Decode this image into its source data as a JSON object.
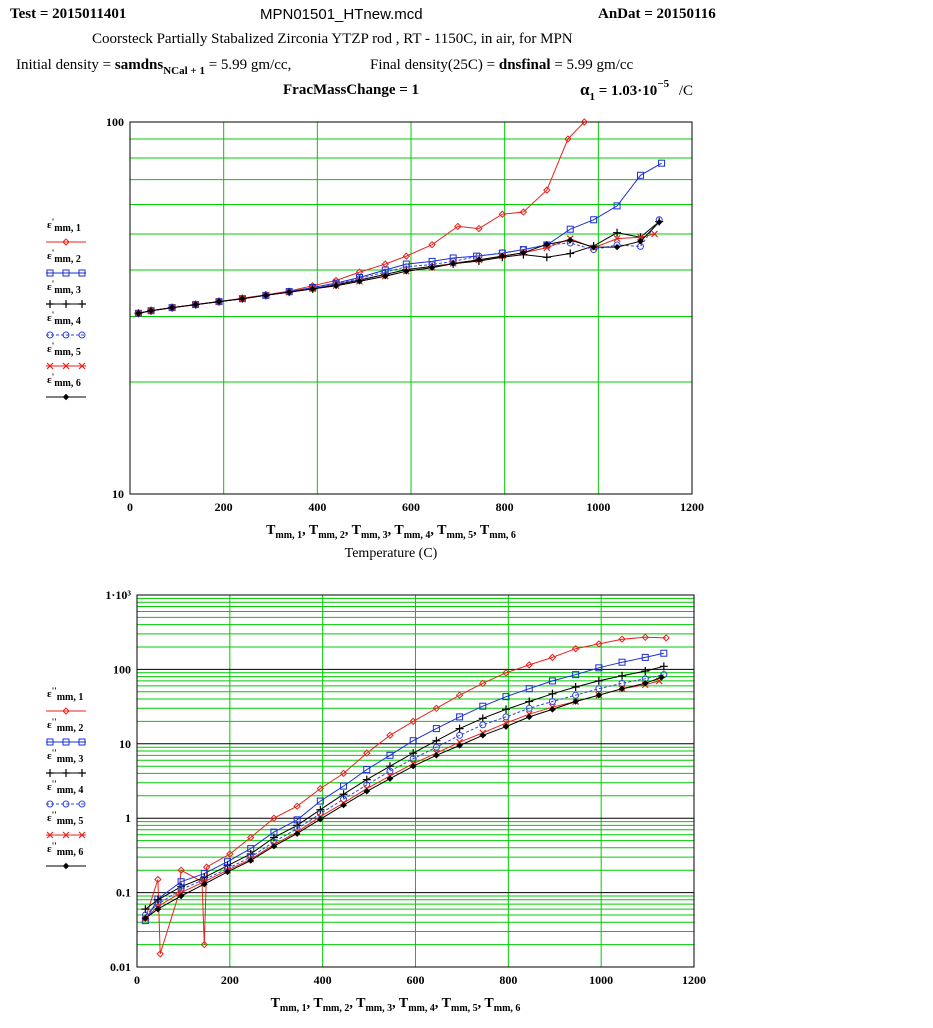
{
  "header": {
    "test": "Test = 2015011401",
    "file": "MPN01501_HTnew.mcd",
    "andat": "AnDat = 20150116",
    "description": "Coorsteck Partially Stabalized Zirconia YTZP rod , RT - 1150C, in air, for MPN",
    "init_density_label": "Initial density =",
    "init_density_var": "samdns",
    "init_density_sub": "NCal + 1",
    "init_density_value": "= 5.99 gm/cc,",
    "final_density_label": "Final density(25C) =",
    "final_density_var": "dnsfinal",
    "final_density_value": "= 5.99 gm/cc",
    "frac_mass": "FracMassChange = 1",
    "alpha_symbol": "α",
    "alpha_sub": "1",
    "alpha_value": "= 1.03·10",
    "alpha_exp": "−5",
    "alpha_unit": "/C"
  },
  "colors": {
    "grid": "#00cc00",
    "series": [
      "#e8231b",
      "#1a2fd4",
      "#000000",
      "#3344dd",
      "#e8231b",
      "#000000"
    ]
  },
  "chart_data": [
    {
      "type": "line",
      "scale": "log-y",
      "xlabel": "T_mm,1, T_mm,2, T_mm,3, T_mm,4, T_mm,5, T_mm,6",
      "xlabel_line2": "Temperature (C)",
      "xlim": [
        0,
        1200
      ],
      "ylim": [
        10,
        100
      ],
      "x_ticks": [
        "0",
        "200",
        "400",
        "600",
        "800",
        "1000",
        "1200"
      ],
      "y_ticks": [
        "100",
        "10"
      ],
      "grid": true,
      "legend_position": "left",
      "series": [
        {
          "name": "ε'mm,1",
          "marker": "diamond",
          "x": [
            18,
            45,
            90,
            140,
            190,
            240,
            290,
            340,
            390,
            440,
            490,
            545,
            590,
            645,
            700,
            745,
            795,
            840,
            890,
            935,
            970
          ],
          "y": [
            30.6,
            31.1,
            31.7,
            32.3,
            32.9,
            33.6,
            34.3,
            35.1,
            36.3,
            37.5,
            39.5,
            41.5,
            43.6,
            46.8,
            52.4,
            51.7,
            56.5,
            57.3,
            65.6,
            90,
            100
          ]
        },
        {
          "name": "ε'mm,2",
          "marker": "square",
          "x": [
            18,
            45,
            90,
            140,
            190,
            240,
            290,
            340,
            390,
            440,
            490,
            545,
            590,
            645,
            690,
            740,
            795,
            840,
            890,
            940,
            990,
            1040,
            1090,
            1135
          ],
          "y": [
            30.6,
            31.1,
            31.7,
            32.3,
            32.9,
            33.5,
            34.2,
            35.0,
            35.9,
            36.9,
            38.2,
            40.0,
            41.5,
            42.2,
            43.1,
            43.6,
            44.4,
            45.4,
            46.7,
            51.5,
            54.6,
            59.5,
            71.9,
            77.5
          ]
        },
        {
          "name": "ε'mm,3",
          "marker": "plus",
          "x": [
            18,
            45,
            90,
            140,
            190,
            240,
            290,
            340,
            390,
            440,
            490,
            545,
            590,
            645,
            690,
            745,
            795,
            840,
            890,
            940,
            990,
            1040,
            1090,
            1130
          ],
          "y": [
            30.6,
            31.1,
            31.7,
            32.3,
            32.9,
            33.5,
            34.2,
            34.9,
            35.6,
            36.5,
            37.6,
            38.9,
            40.1,
            40.9,
            41.6,
            42.3,
            43.3,
            44.0,
            43.3,
            44.3,
            46.4,
            50.4,
            49.0,
            54.0
          ]
        },
        {
          "name": "ε'mm,4",
          "marker": "circle",
          "x": [
            18,
            45,
            90,
            140,
            190,
            240,
            290,
            340,
            390,
            440,
            490,
            545,
            590,
            645,
            690,
            745,
            795,
            840,
            890,
            940,
            990,
            1040,
            1090,
            1130
          ],
          "y": [
            30.6,
            31.1,
            31.7,
            32.3,
            32.9,
            33.5,
            34.2,
            34.9,
            35.7,
            36.7,
            37.9,
            39.5,
            40.8,
            41.4,
            42.2,
            43.6,
            44.5,
            45.4,
            46.8,
            47.3,
            45.4,
            46.7,
            46.3,
            54.6
          ]
        },
        {
          "name": "ε'mm,5",
          "marker": "x",
          "x": [
            18,
            45,
            90,
            140,
            190,
            240,
            290,
            340,
            390,
            440,
            490,
            545,
            590,
            645,
            690,
            745,
            795,
            840,
            890,
            940,
            990,
            1040,
            1090,
            1120
          ],
          "y": [
            30.6,
            31.1,
            31.7,
            32.3,
            32.9,
            33.5,
            34.2,
            34.9,
            35.6,
            36.3,
            37.3,
            38.5,
            39.7,
            40.6,
            41.7,
            42.6,
            43.6,
            44.5,
            45.9,
            48.6,
            45.9,
            48.6,
            49.0,
            50.0
          ]
        },
        {
          "name": "ε'mm,6",
          "marker": "dot",
          "x": [
            18,
            45,
            90,
            140,
            190,
            240,
            290,
            340,
            390,
            440,
            490,
            545,
            590,
            645,
            690,
            745,
            795,
            840,
            890,
            940,
            990,
            1040,
            1090,
            1130
          ],
          "y": [
            30.6,
            31.1,
            31.7,
            32.3,
            32.9,
            33.5,
            34.2,
            34.9,
            35.6,
            36.3,
            37.3,
            38.5,
            39.7,
            40.6,
            41.6,
            42.6,
            43.6,
            44.5,
            46.9,
            48.1,
            46.1,
            46.1,
            47.8,
            53.8
          ]
        }
      ]
    },
    {
      "type": "line",
      "scale": "log-y",
      "xlabel": "T_mm,1, T_mm,2, T_mm,3, T_mm,4, T_mm,5, T_mm,6",
      "xlim": [
        0,
        1200
      ],
      "ylim": [
        0.01,
        1000
      ],
      "x_ticks": [
        "0",
        "200",
        "400",
        "600",
        "800",
        "1000",
        "1200"
      ],
      "y_ticks": [
        "1·10³",
        "100",
        "10",
        "1",
        "0.1",
        "0.01"
      ],
      "grid": true,
      "legend_position": "left",
      "series": [
        {
          "name": "ε''mm,1",
          "marker": "diamond",
          "x": [
            18,
            45,
            50,
            90,
            95,
            140,
            145,
            150,
            200,
            245,
            295,
            345,
            395,
            445,
            495,
            545,
            595,
            645,
            695,
            745,
            795,
            845,
            895,
            945,
            995,
            1045,
            1095,
            1140
          ],
          "y": [
            0.045,
            0.15,
            0.015,
            0.095,
            0.2,
            0.14,
            0.02,
            0.22,
            0.33,
            0.55,
            1.0,
            1.45,
            2.5,
            4.0,
            7.5,
            13,
            20,
            30,
            45,
            65,
            90,
            115,
            145,
            190,
            220,
            255,
            270,
            265
          ]
        },
        {
          "name": "ε''mm,2",
          "marker": "square",
          "x": [
            18,
            45,
            95,
            145,
            195,
            245,
            295,
            345,
            395,
            445,
            495,
            545,
            595,
            645,
            695,
            745,
            795,
            845,
            895,
            945,
            995,
            1045,
            1095,
            1135
          ],
          "y": [
            0.042,
            0.082,
            0.14,
            0.18,
            0.26,
            0.39,
            0.65,
            0.95,
            1.7,
            2.7,
            4.5,
            7,
            11,
            16,
            23,
            32,
            43,
            55,
            70,
            85,
            105,
            125,
            145,
            165
          ]
        },
        {
          "name": "ε''mm,3",
          "marker": "plus",
          "x": [
            18,
            45,
            95,
            145,
            195,
            245,
            295,
            345,
            395,
            445,
            495,
            545,
            595,
            645,
            695,
            745,
            795,
            845,
            895,
            945,
            995,
            1045,
            1095,
            1135
          ],
          "y": [
            0.06,
            0.08,
            0.12,
            0.16,
            0.23,
            0.33,
            0.55,
            0.8,
            1.3,
            2.1,
            3.3,
            5,
            7.5,
            11,
            16,
            22,
            29,
            37,
            47,
            58,
            70,
            82,
            95,
            110
          ]
        },
        {
          "name": "ε''mm,4",
          "marker": "circle",
          "x": [
            18,
            45,
            95,
            145,
            195,
            245,
            295,
            345,
            395,
            445,
            495,
            545,
            595,
            645,
            695,
            745,
            795,
            845,
            895,
            945,
            995,
            1045,
            1095,
            1135
          ],
          "y": [
            0.05,
            0.07,
            0.11,
            0.15,
            0.21,
            0.3,
            0.48,
            0.72,
            1.15,
            1.8,
            2.8,
            4.3,
            6.3,
            9,
            13,
            18,
            23,
            30,
            37,
            45,
            55,
            65,
            75,
            85
          ]
        },
        {
          "name": "ε''mm,5",
          "marker": "x",
          "x": [
            18,
            45,
            95,
            145,
            195,
            245,
            295,
            345,
            395,
            445,
            495,
            545,
            595,
            645,
            695,
            745,
            795,
            845,
            895,
            945,
            995,
            1045,
            1095,
            1125
          ],
          "y": [
            0.045,
            0.065,
            0.1,
            0.14,
            0.2,
            0.28,
            0.44,
            0.65,
            1.05,
            1.6,
            2.5,
            3.7,
            5.4,
            7.5,
            10.5,
            14,
            19,
            25,
            31,
            37,
            45,
            55,
            62,
            70
          ]
        },
        {
          "name": "ε''mm,6",
          "marker": "dot",
          "x": [
            18,
            45,
            95,
            145,
            195,
            245,
            295,
            345,
            395,
            445,
            495,
            545,
            595,
            645,
            695,
            745,
            795,
            845,
            895,
            945,
            995,
            1045,
            1095,
            1130
          ],
          "y": [
            0.045,
            0.06,
            0.09,
            0.13,
            0.19,
            0.27,
            0.42,
            0.62,
            0.97,
            1.5,
            2.3,
            3.4,
            5,
            7,
            9.5,
            13,
            17,
            23,
            29,
            37,
            45,
            55,
            65,
            78
          ]
        }
      ]
    }
  ]
}
